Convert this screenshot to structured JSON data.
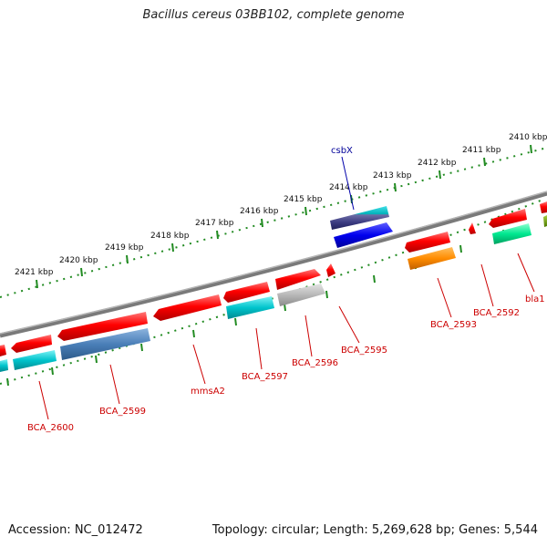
{
  "title": "Bacillus cereus 03BB102, complete genome",
  "footer": {
    "accession": "Accession: NC_012472",
    "topology": "Topology: circular; Length: 5,269,628 bp; Genes: 5,544"
  },
  "ruler": {
    "labels": [
      "2410 kbp",
      "2411 kbp",
      "2412 kbp",
      "2413 kbp",
      "2414 kbp",
      "2415 kbp",
      "2416 kbp",
      "2417 kbp",
      "2418 kbp",
      "2419 kbp",
      "2420 kbp",
      "2421 kbp"
    ]
  },
  "gene_labels": {
    "csbX": "csbX",
    "bla1": "bla1",
    "BCA_2592": "BCA_2592",
    "BCA_2593": "BCA_2593",
    "BCA_2595": "BCA_2595",
    "BCA_2596": "BCA_2596",
    "BCA_2597": "BCA_2597",
    "mmsA2": "mmsA2",
    "BCA_2599": "BCA_2599",
    "BCA_2600": "BCA_2600"
  },
  "colors": {
    "cds": "#ff0000",
    "label_red": "#cc0000",
    "label_blue": "#000099",
    "backbone": "#888888",
    "ruler_tick": "#228b22",
    "teal": "#00c0c8",
    "steelblue": "#4a7fb8",
    "gray": "#b0b0b0",
    "orange": "#ff8c00",
    "mint": "#00e890",
    "blue": "#0000ee",
    "olive": "#669900"
  }
}
